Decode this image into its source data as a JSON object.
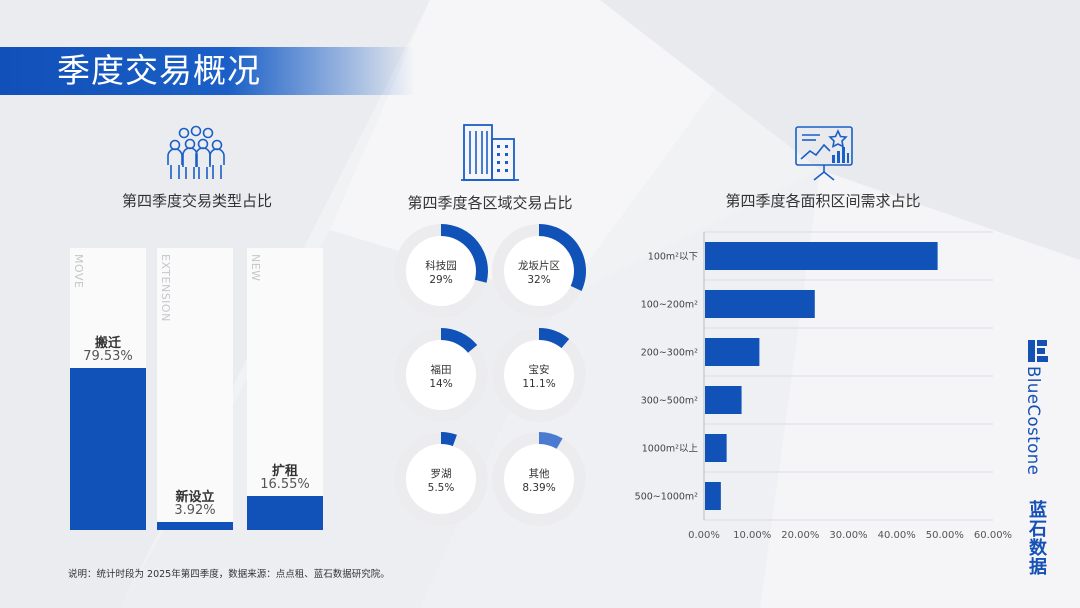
{
  "page": {
    "title": "季度交易概况",
    "footnote": "说明：统计时段为 2025年第四季度，数据来源：点点租、蓝石数据研究院。",
    "brand": {
      "en": "BlueCostone",
      "cn": "蓝石数据"
    },
    "accent_color": "#1152b8"
  },
  "panels": {
    "type": {
      "title": "第四季度交易类型占比",
      "icon": "people-group-icon"
    },
    "region": {
      "title": "第四季度各区域交易占比",
      "icon": "buildings-icon"
    },
    "area": {
      "title": "第四季度各面积区间需求占比",
      "icon": "presentation-chart-icon"
    }
  },
  "chart_data": [
    {
      "type": "bar",
      "title": "第四季度交易类型占比",
      "categories": [
        "搬迁",
        "新设立",
        "扩租"
      ],
      "column_labels": [
        "MOVE",
        "EXTENSION",
        "NEW"
      ],
      "values": [
        79.53,
        3.92,
        16.55
      ],
      "value_labels": [
        "79.53%",
        "3.92%",
        "16.55%"
      ],
      "ylim": [
        0,
        100
      ],
      "color": "#1152b8"
    },
    {
      "type": "pie",
      "title": "第四季度各区域交易占比",
      "style": "donut-grid",
      "labels": [
        "科技园",
        "龙坂片区",
        "福田",
        "宝安",
        "罗湖",
        "其他"
      ],
      "values": [
        29,
        32,
        14,
        11.1,
        5.5,
        8.39
      ],
      "value_labels": [
        "29%",
        "32%",
        "14%",
        "11.1%",
        "5.5%",
        "8.39%"
      ],
      "colors": [
        "#1152b8",
        "#1152b8",
        "#1152b8",
        "#1152b8",
        "#1152b8",
        "#4a7bd1"
      ]
    },
    {
      "type": "bar",
      "orientation": "horizontal",
      "title": "第四季度各面积区间需求占比",
      "categories": [
        "100m²以下",
        "100~200m²",
        "200~300m²",
        "300~500m²",
        "1000m²以上",
        "500~1000m²"
      ],
      "values": [
        48.5,
        23.0,
        11.5,
        7.8,
        4.7,
        3.5
      ],
      "xlim": [
        0,
        60
      ],
      "xticks": [
        "0.00%",
        "10.00%",
        "20.00%",
        "30.00%",
        "40.00%",
        "50.00%",
        "60.00%"
      ],
      "grid": true,
      "color": "#1152b8"
    }
  ]
}
